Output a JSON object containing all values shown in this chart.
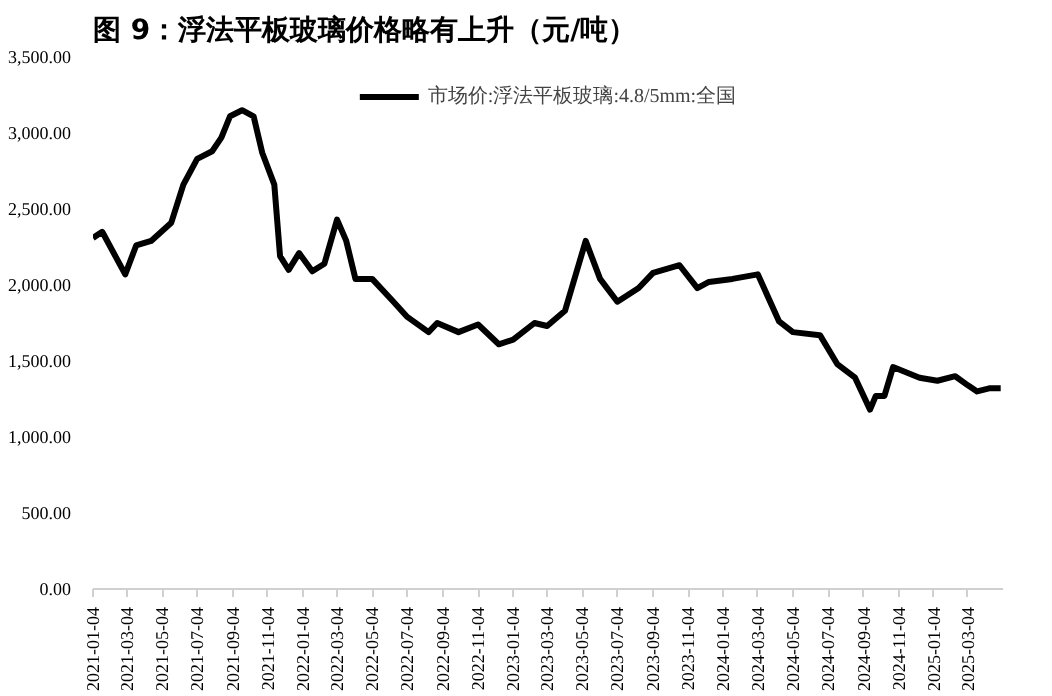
{
  "chart_data": {
    "type": "line",
    "title": "图 9：浮法平板玻璃价格略有上升（元/吨）",
    "x": [
      "2021-01-04",
      "2021-01-20",
      "2021-03-01",
      "2021-03-20",
      "2021-04-15",
      "2021-05-20",
      "2021-06-10",
      "2021-07-04",
      "2021-07-30",
      "2021-08-15",
      "2021-08-30",
      "2021-09-20",
      "2021-10-10",
      "2021-10-25",
      "2021-11-15",
      "2021-11-25",
      "2021-12-10",
      "2021-12-28",
      "2022-01-20",
      "2022-02-10",
      "2022-03-04",
      "2022-03-20",
      "2022-04-05",
      "2022-05-04",
      "2022-06-10",
      "2022-07-04",
      "2022-08-10",
      "2022-08-25",
      "2022-10-01",
      "2022-11-04",
      "2022-12-10",
      "2023-01-04",
      "2023-02-10",
      "2023-03-04",
      "2023-04-04",
      "2023-05-10",
      "2023-06-04",
      "2023-07-04",
      "2023-08-10",
      "2023-09-04",
      "2023-10-20",
      "2023-11-20",
      "2023-12-10",
      "2024-01-20",
      "2024-03-04",
      "2024-04-10",
      "2024-05-04",
      "2024-06-20",
      "2024-07-20",
      "2024-08-20",
      "2024-09-15",
      "2024-09-25",
      "2024-10-10",
      "2024-10-25",
      "2024-12-10",
      "2025-01-10",
      "2025-02-10",
      "2025-03-04",
      "2025-03-20",
      "2025-04-10",
      "2025-04-30"
    ],
    "series": [
      {
        "name": "市场价:浮法平板玻璃:4.8/5mm:全国",
        "color": "#000000",
        "values": [
          2310,
          2350,
          2070,
          2260,
          2290,
          2410,
          2660,
          2830,
          2880,
          2970,
          3110,
          3150,
          3110,
          2870,
          2660,
          2190,
          2100,
          2210,
          2090,
          2140,
          2430,
          2290,
          2040,
          2040,
          1890,
          1790,
          1690,
          1750,
          1690,
          1740,
          1610,
          1640,
          1750,
          1730,
          1830,
          2290,
          2040,
          1890,
          1980,
          2080,
          2130,
          1980,
          2020,
          2040,
          2070,
          1760,
          1690,
          1670,
          1480,
          1390,
          1180,
          1270,
          1270,
          1460,
          1390,
          1370,
          1400,
          1340,
          1300,
          1320,
          1320
        ]
      }
    ],
    "xlim": [
      "2021-01-04",
      "2025-05-04"
    ],
    "xticks": [
      "2021-01-04",
      "2021-03-04",
      "2021-05-04",
      "2021-07-04",
      "2021-09-04",
      "2021-11-04",
      "2022-01-04",
      "2022-03-04",
      "2022-05-04",
      "2022-07-04",
      "2022-09-04",
      "2022-11-04",
      "2023-01-04",
      "2023-03-04",
      "2023-05-04",
      "2023-07-04",
      "2023-09-04",
      "2023-11-04",
      "2024-01-04",
      "2024-03-04",
      "2024-05-04",
      "2024-07-04",
      "2024-09-04",
      "2024-11-04",
      "2025-01-04",
      "2025-03-04"
    ],
    "ylim": [
      0,
      3500
    ],
    "yticks": [
      {
        "value": 0,
        "label": "0.00"
      },
      {
        "value": 500,
        "label": "500.00"
      },
      {
        "value": 1000,
        "label": "1,000.00"
      },
      {
        "value": 1500,
        "label": "1,500.00"
      },
      {
        "value": 2000,
        "label": "2,000.00"
      },
      {
        "value": 2500,
        "label": "2,500.00"
      },
      {
        "value": 3000,
        "label": "3,000.00"
      },
      {
        "value": 3500,
        "label": "3,500.00"
      }
    ],
    "grid": false,
    "legend": "top",
    "marker": "none",
    "line_style": "solid"
  }
}
